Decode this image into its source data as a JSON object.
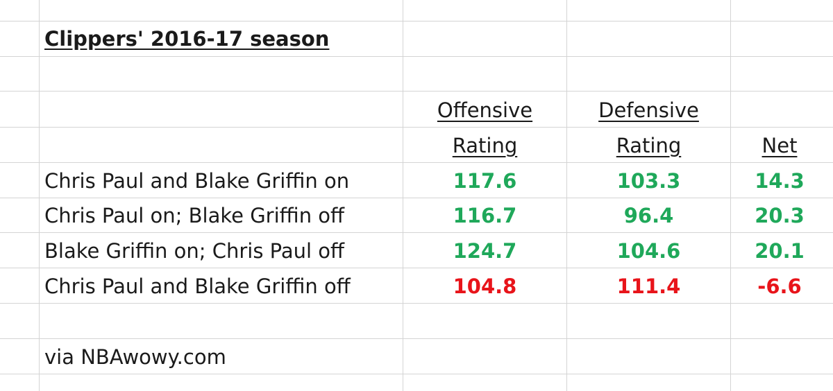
{
  "title": "Clippers' 2016-17 season",
  "headers": {
    "offensive_line1": "Offensive ",
    "offensive_line2": "Rating",
    "defensive_line1": "Defensive ",
    "defensive_line2": "Rating",
    "net": "Net"
  },
  "colors": {
    "positive": "#1fa85a",
    "negative": "#e8141a",
    "text": "#1a1a1a",
    "grid": "#d4d4d4"
  },
  "rows": [
    {
      "label": "Chris Paul and Blake Griffin on",
      "offensive": "117.6",
      "defensive": "103.3",
      "net": "14.3",
      "status": "positive"
    },
    {
      "label": "Chris Paul on; Blake Griffin off",
      "offensive": "116.7",
      "defensive": "96.4",
      "net": "20.3",
      "status": "positive"
    },
    {
      "label": "Blake Griffin on; Chris Paul off",
      "offensive": "124.7",
      "defensive": "104.6",
      "net": "20.1",
      "status": "positive"
    },
    {
      "label": "Chris Paul and Blake Griffin off",
      "offensive": "104.8",
      "defensive": "111.4",
      "net": "-6.6",
      "status": "negative"
    }
  ],
  "footer": "via NBAwowy.com"
}
